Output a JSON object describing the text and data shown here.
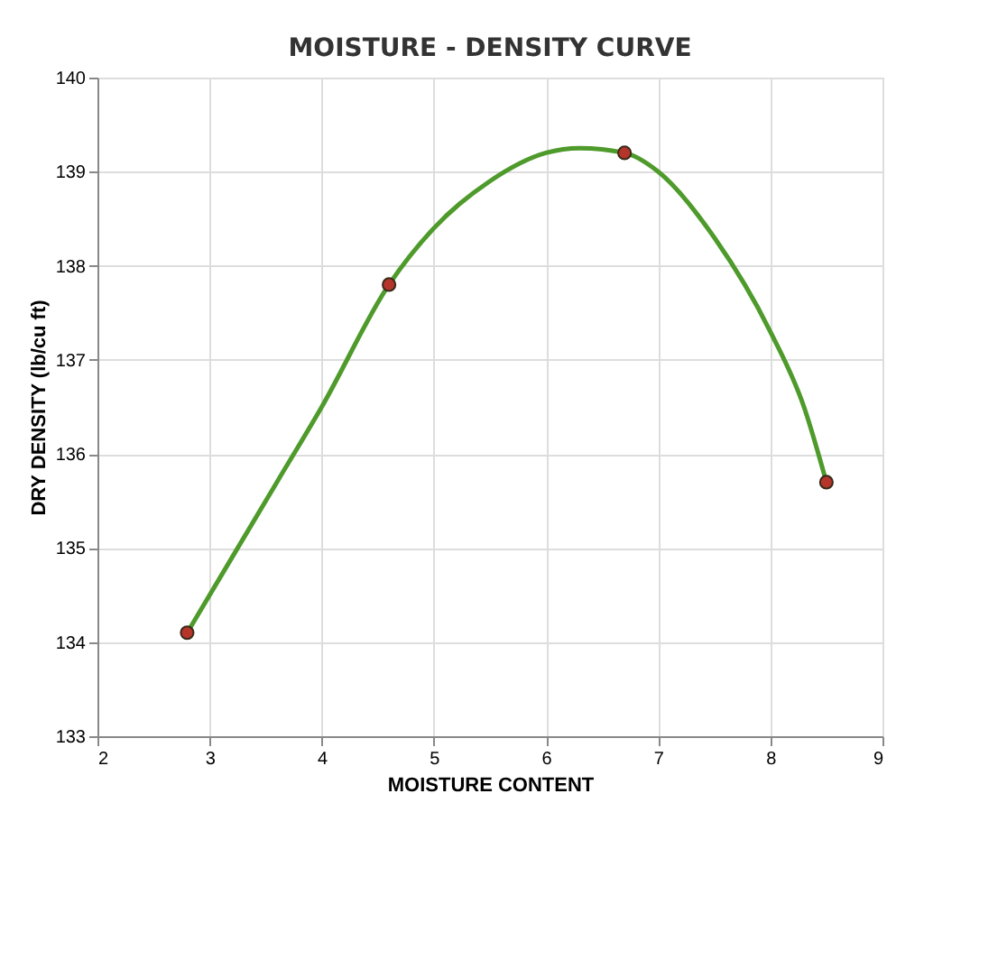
{
  "chart_data": {
    "type": "line",
    "title": "MOISTURE - DENSITY CURVE",
    "xlabel": "MOISTURE CONTENT",
    "ylabel": "DRY DENSITY (lb/cu ft)",
    "x": [
      2.8,
      4.6,
      6.7,
      8.5
    ],
    "series": [
      {
        "type": "scatter",
        "color": "#b5352a",
        "values": [
          134.1,
          137.8,
          139.2,
          135.7
        ],
        "marker": "circle"
      },
      {
        "color": "#4e9a2b",
        "x": [
          2.8,
          3.2,
          3.6,
          4.0,
          4.6,
          5.0,
          5.5,
          6.0,
          6.3,
          6.7,
          7.0,
          7.5,
          8.0,
          8.3,
          8.5
        ],
        "values": [
          134.1,
          134.9,
          135.7,
          136.5,
          137.8,
          138.4,
          138.9,
          139.2,
          139.25,
          139.2,
          139.0,
          138.3,
          137.3,
          136.5,
          135.7
        ],
        "line_style": "solid",
        "marker": "none"
      }
    ],
    "xlim": [
      2,
      9
    ],
    "xticks": [
      2,
      3,
      4,
      5,
      6,
      7,
      8,
      9
    ],
    "ylim": [
      133,
      140
    ],
    "yticks": [
      133,
      134,
      135,
      136,
      137,
      138,
      139,
      140
    ],
    "grid": true
  }
}
